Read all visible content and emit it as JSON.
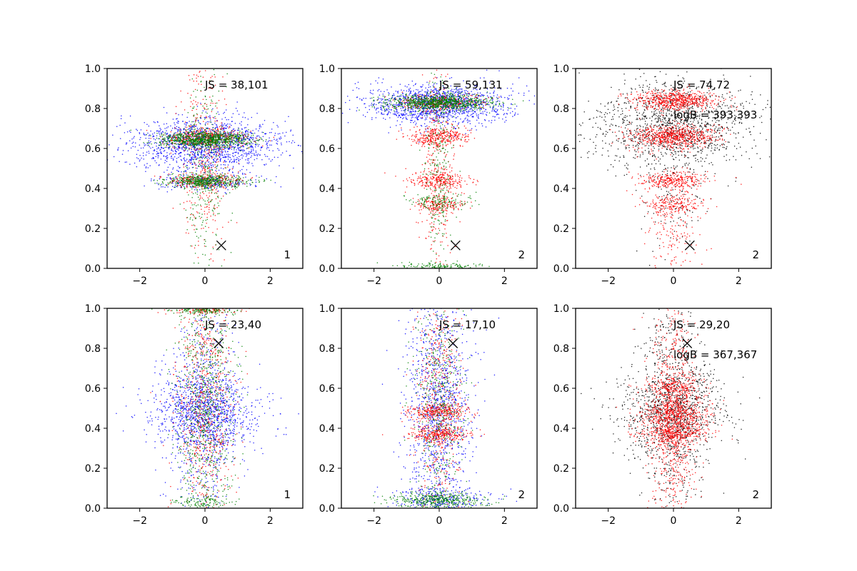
{
  "figure": {
    "colors": {
      "axes": "#000000",
      "marker": "#000000"
    }
  },
  "chart_data": [
    {
      "type": "scatter",
      "panel_label": "1",
      "annotations": [
        "JS = 38,101"
      ],
      "marker": {
        "x": 0.5,
        "y": 0.115,
        "symbol": "x"
      },
      "xlim": [
        -3,
        3
      ],
      "ylim": [
        0,
        1
      ],
      "xticks": [
        -2,
        0,
        2
      ],
      "yticks": [
        0.0,
        0.2,
        0.4,
        0.6,
        0.8,
        1.0
      ],
      "xtick_labels": [
        "−2",
        "0",
        "2"
      ],
      "ytick_labels": [
        "0.0",
        "0.2",
        "0.4",
        "0.6",
        "0.8",
        "1.0"
      ],
      "series": [
        {
          "color": "#0000ff",
          "clusters": [
            {
              "y": 0.62,
              "ysd": 0.07,
              "xsd": 1.15,
              "count": 1500
            },
            {
              "y": 0.43,
              "ysd": 0.02,
              "xsd": 0.8,
              "count": 220
            }
          ]
        },
        {
          "color": "#ff0000",
          "clusters": [
            {
              "y": 0.65,
              "ysd": 0.025,
              "xsd": 0.65,
              "count": 400
            },
            {
              "y": 0.44,
              "ysd": 0.02,
              "xsd": 0.6,
              "count": 250
            },
            {
              "y": 0.55,
              "ysd": 0.25,
              "xsd": 0.35,
              "count": 350
            }
          ]
        },
        {
          "color": "#008000",
          "clusters": [
            {
              "y": 0.645,
              "ysd": 0.02,
              "xsd": 0.7,
              "count": 900
            },
            {
              "y": 0.435,
              "ysd": 0.015,
              "xsd": 0.65,
              "count": 500
            },
            {
              "y": 0.5,
              "ysd": 0.25,
              "xsd": 0.3,
              "count": 300
            }
          ]
        }
      ]
    },
    {
      "type": "scatter",
      "panel_label": "2",
      "annotations": [
        "JS = 59,131"
      ],
      "marker": {
        "x": 0.5,
        "y": 0.115,
        "symbol": "x"
      },
      "xlim": [
        -3,
        3
      ],
      "ylim": [
        0,
        1
      ],
      "xticks": [
        -2,
        0,
        2
      ],
      "yticks": [
        0.0,
        0.2,
        0.4,
        0.6,
        0.8,
        1.0
      ],
      "xtick_labels": [
        "−2",
        "0",
        "2"
      ],
      "ytick_labels": [
        "0.0",
        "0.2",
        "0.4",
        "0.6",
        "0.8",
        "1.0"
      ],
      "series": [
        {
          "color": "#0000ff",
          "clusters": [
            {
              "y": 0.82,
              "ysd": 0.05,
              "xsd": 1.05,
              "count": 1400
            }
          ]
        },
        {
          "color": "#ff0000",
          "clusters": [
            {
              "y": 0.83,
              "ysd": 0.02,
              "xsd": 0.7,
              "count": 300
            },
            {
              "y": 0.66,
              "ysd": 0.025,
              "xsd": 0.45,
              "count": 350
            },
            {
              "y": 0.44,
              "ysd": 0.02,
              "xsd": 0.45,
              "count": 250
            },
            {
              "y": 0.32,
              "ysd": 0.02,
              "xsd": 0.4,
              "count": 180
            },
            {
              "y": 0.5,
              "ysd": 0.28,
              "xsd": 0.25,
              "count": 300
            }
          ]
        },
        {
          "color": "#008000",
          "clusters": [
            {
              "y": 0.83,
              "ysd": 0.02,
              "xsd": 0.8,
              "count": 900
            },
            {
              "y": 0.33,
              "ysd": 0.02,
              "xsd": 0.5,
              "count": 120
            },
            {
              "y": 0.01,
              "ysd": 0.01,
              "xsd": 0.6,
              "count": 150
            },
            {
              "y": 0.5,
              "ysd": 0.28,
              "xsd": 0.25,
              "count": 250
            }
          ]
        }
      ]
    },
    {
      "type": "scatter",
      "panel_label": "2",
      "annotations": [
        "JS = 74,72",
        "logB = 393,393"
      ],
      "marker": {
        "x": 0.5,
        "y": 0.115,
        "symbol": "x"
      },
      "xlim": [
        -3,
        3
      ],
      "ylim": [
        0,
        1
      ],
      "xticks": [
        -2,
        0,
        2
      ],
      "yticks": [
        0.0,
        0.2,
        0.4,
        0.6,
        0.8,
        1.0
      ],
      "xtick_labels": [
        "−2",
        "0",
        "2"
      ],
      "ytick_labels": [
        "0.0",
        "0.2",
        "0.4",
        "0.6",
        "0.8",
        "1.0"
      ],
      "series": [
        {
          "color": "#000000",
          "clusters": [
            {
              "y": 0.72,
              "ysd": 0.11,
              "xsd": 1.2,
              "count": 1300
            },
            {
              "y": 0.4,
              "ysd": 0.15,
              "xsd": 0.5,
              "count": 150
            }
          ]
        },
        {
          "color": "#ff0000",
          "clusters": [
            {
              "y": 0.84,
              "ysd": 0.025,
              "xsd": 0.65,
              "count": 650
            },
            {
              "y": 0.66,
              "ysd": 0.03,
              "xsd": 0.65,
              "count": 700
            },
            {
              "y": 0.44,
              "ysd": 0.02,
              "xsd": 0.55,
              "count": 300
            },
            {
              "y": 0.32,
              "ysd": 0.025,
              "xsd": 0.45,
              "count": 180
            },
            {
              "y": 0.2,
              "ysd": 0.15,
              "xsd": 0.4,
              "count": 200
            }
          ]
        }
      ]
    },
    {
      "type": "scatter",
      "panel_label": "1",
      "annotations": [
        "JS = 23,40"
      ],
      "marker": {
        "x": 0.42,
        "y": 0.825,
        "symbol": "x"
      },
      "xlim": [
        -3,
        3
      ],
      "ylim": [
        0,
        1
      ],
      "xticks": [
        -2,
        0,
        2
      ],
      "yticks": [
        0.0,
        0.2,
        0.4,
        0.6,
        0.8,
        1.0
      ],
      "xtick_labels": [
        "−2",
        "0",
        "2"
      ],
      "ytick_labels": [
        "0.0",
        "0.2",
        "0.4",
        "0.6",
        "0.8",
        "1.0"
      ],
      "series": [
        {
          "color": "#0000ff",
          "clusters": [
            {
              "y": 0.48,
              "ysd": 0.1,
              "xsd": 0.85,
              "count": 1000
            },
            {
              "y": 0.5,
              "ysd": 0.3,
              "xsd": 0.5,
              "count": 700
            }
          ]
        },
        {
          "color": "#ff0000",
          "clusters": [
            {
              "y": 0.5,
              "ysd": 0.3,
              "xsd": 0.45,
              "count": 700
            },
            {
              "y": 0.99,
              "ysd": 0.01,
              "xsd": 0.5,
              "count": 100
            }
          ]
        },
        {
          "color": "#008000",
          "clusters": [
            {
              "y": 0.5,
              "ysd": 0.3,
              "xsd": 0.45,
              "count": 800
            },
            {
              "y": 0.99,
              "ysd": 0.01,
              "xsd": 0.5,
              "count": 150
            },
            {
              "y": 0.03,
              "ysd": 0.015,
              "xsd": 0.5,
              "count": 100
            }
          ]
        }
      ]
    },
    {
      "type": "scatter",
      "panel_label": "2",
      "annotations": [
        "JS = 17,10"
      ],
      "marker": {
        "x": 0.42,
        "y": 0.825,
        "symbol": "x"
      },
      "xlim": [
        -3,
        3
      ],
      "ylim": [
        0,
        1
      ],
      "xticks": [
        -2,
        0,
        2
      ],
      "yticks": [
        0.0,
        0.2,
        0.4,
        0.6,
        0.8,
        1.0
      ],
      "xtick_labels": [
        "−2",
        "0",
        "2"
      ],
      "ytick_labels": [
        "0.0",
        "0.2",
        "0.4",
        "0.6",
        "0.8",
        "1.0"
      ],
      "series": [
        {
          "color": "#0000ff",
          "clusters": [
            {
              "y": 0.5,
              "ysd": 0.3,
              "xsd": 0.5,
              "count": 1200
            },
            {
              "y": 0.05,
              "ysd": 0.03,
              "xsd": 0.8,
              "count": 250
            }
          ]
        },
        {
          "color": "#ff0000",
          "clusters": [
            {
              "y": 0.48,
              "ysd": 0.02,
              "xsd": 0.45,
              "count": 300
            },
            {
              "y": 0.37,
              "ysd": 0.02,
              "xsd": 0.45,
              "count": 300
            },
            {
              "y": 0.55,
              "ysd": 0.3,
              "xsd": 0.35,
              "count": 500
            }
          ]
        },
        {
          "color": "#008000",
          "clusters": [
            {
              "y": 0.5,
              "ysd": 0.3,
              "xsd": 0.4,
              "count": 500
            },
            {
              "y": 0.04,
              "ysd": 0.02,
              "xsd": 0.7,
              "count": 400
            }
          ]
        }
      ]
    },
    {
      "type": "scatter",
      "panel_label": "2",
      "annotations": [
        "JS = 29,20",
        "logB = 367,367"
      ],
      "marker": {
        "x": 0.42,
        "y": 0.825,
        "symbol": "x"
      },
      "xlim": [
        -3,
        3
      ],
      "ylim": [
        0,
        1
      ],
      "xticks": [
        -2,
        0,
        2
      ],
      "yticks": [
        0.0,
        0.2,
        0.4,
        0.6,
        0.8,
        1.0
      ],
      "xtick_labels": [
        "−2",
        "0",
        "2"
      ],
      "ytick_labels": [
        "0.0",
        "0.2",
        "0.4",
        "0.6",
        "0.8",
        "1.0"
      ],
      "series": [
        {
          "color": "#000000",
          "clusters": [
            {
              "y": 0.48,
              "ysd": 0.12,
              "xsd": 0.85,
              "count": 900
            },
            {
              "y": 0.5,
              "ysd": 0.3,
              "xsd": 0.5,
              "count": 600
            }
          ]
        },
        {
          "color": "#ff0000",
          "clusters": [
            {
              "y": 0.48,
              "ysd": 0.03,
              "xsd": 0.55,
              "count": 400
            },
            {
              "y": 0.38,
              "ysd": 0.03,
              "xsd": 0.55,
              "count": 400
            },
            {
              "y": 0.6,
              "ysd": 0.025,
              "xsd": 0.45,
              "count": 200
            },
            {
              "y": 0.45,
              "ysd": 0.3,
              "xsd": 0.35,
              "count": 900
            }
          ]
        }
      ]
    }
  ]
}
